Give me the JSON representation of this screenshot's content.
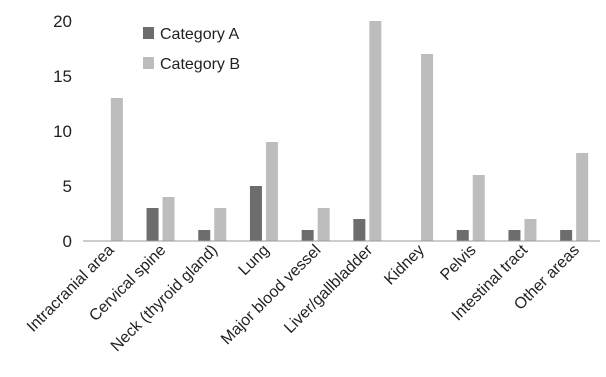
{
  "chart_data": {
    "type": "bar",
    "title": "",
    "xlabel": "",
    "ylabel": "",
    "ylim": [
      0,
      20
    ],
    "yticks": [
      0,
      5,
      10,
      15,
      20
    ],
    "grid": false,
    "legend_position": "top-left",
    "categories": [
      "Intracranial area",
      "Cervical spine",
      "Neck (thyroid gland)",
      "Lung",
      "Major blood vessel",
      "Liver/gallbladder",
      "Kidney",
      "Pelvis",
      "Intestinal tract",
      "Other areas"
    ],
    "series": [
      {
        "name": "Category A",
        "color": "#6d6d6d",
        "values": [
          0,
          3,
          1,
          5,
          1,
          2,
          0,
          1,
          1,
          1
        ]
      },
      {
        "name": "Category B",
        "color": "#bdbdbd",
        "values": [
          13,
          4,
          3,
          9,
          3,
          20,
          17,
          6,
          2,
          8
        ]
      }
    ]
  }
}
